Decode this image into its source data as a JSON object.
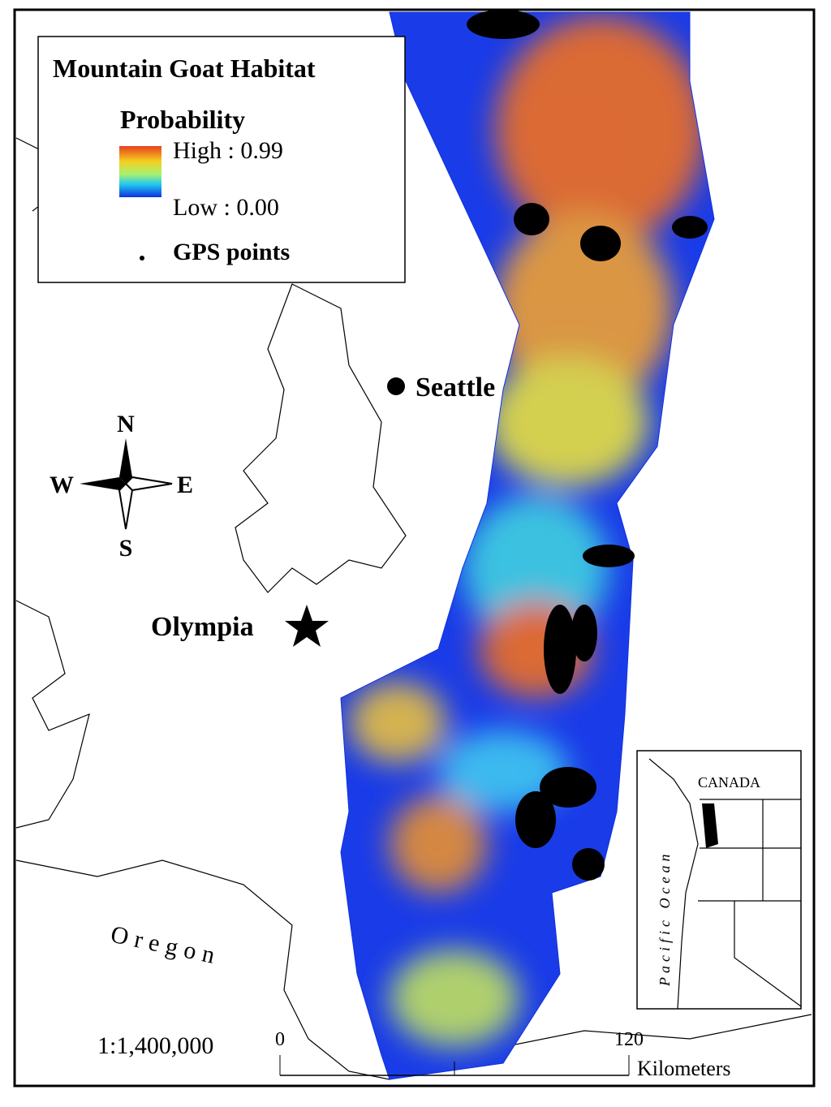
{
  "legend": {
    "title": "Mountain Goat Habitat",
    "subtitle": "Probability",
    "high_label": "High : 0.99",
    "low_label": "Low : 0.00",
    "points_label": "GPS points"
  },
  "places": {
    "seattle": "Seattle",
    "olympia": "Olympia",
    "oregon": "Oregon"
  },
  "compass": {
    "north": "N",
    "south": "S",
    "east": "E",
    "west": "W"
  },
  "inset": {
    "country": "CANADA",
    "ocean": "Pacific Ocean"
  },
  "scale": {
    "ratio": "1:1,400,000",
    "start": "0",
    "end": "120",
    "unit": "Kilometers"
  }
}
